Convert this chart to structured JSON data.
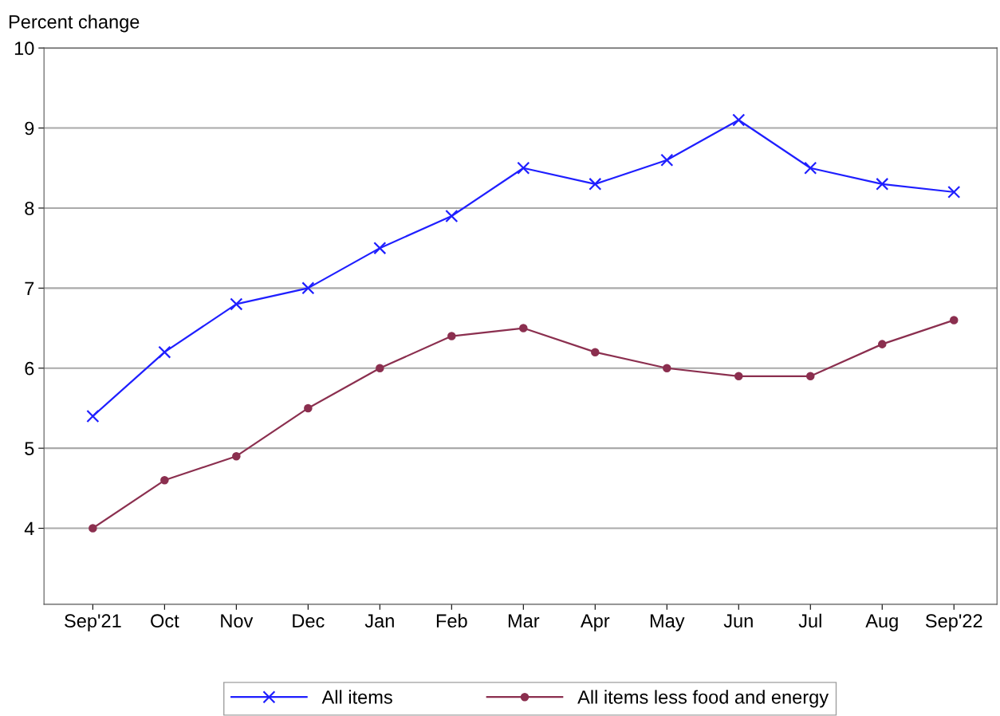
{
  "chart_data": {
    "type": "line",
    "ylabel": "Percent change",
    "categories": [
      "Sep'21",
      "Oct",
      "Nov",
      "Dec",
      "Jan",
      "Feb",
      "Mar",
      "Apr",
      "May",
      "Jun",
      "Jul",
      "Aug",
      "Sep'22"
    ],
    "series": [
      {
        "name": "All items",
        "color": "#1f1fff",
        "marker": "cross",
        "values": [
          5.4,
          6.2,
          6.8,
          7.0,
          7.5,
          7.9,
          8.5,
          8.3,
          8.6,
          9.1,
          8.5,
          8.3,
          8.2
        ]
      },
      {
        "name": "All items less food and energy",
        "color": "#8b2f4f",
        "marker": "circle",
        "values": [
          4.0,
          4.6,
          4.9,
          5.5,
          6.0,
          6.4,
          6.5,
          6.2,
          6.0,
          5.9,
          5.9,
          6.3,
          6.6
        ]
      }
    ],
    "ylim": [
      3.05,
      10
    ],
    "yticks": [
      4,
      5,
      6,
      7,
      8,
      9,
      10
    ],
    "grid": "y",
    "legend": "bottom",
    "line_style": "solid"
  }
}
